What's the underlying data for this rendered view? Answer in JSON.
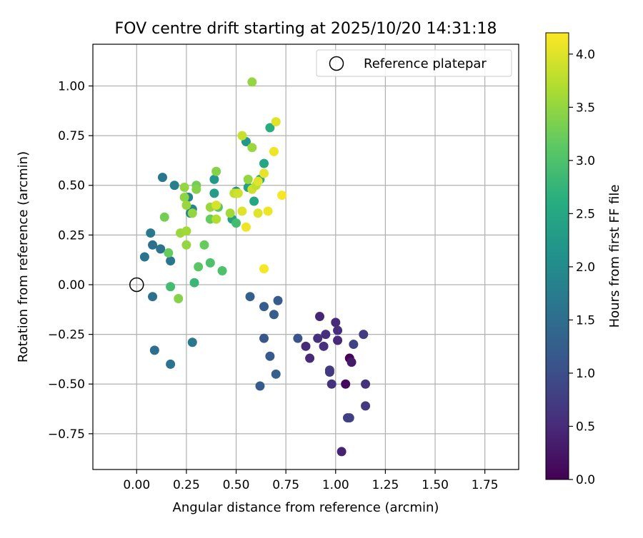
{
  "chart_data": {
    "type": "scatter",
    "title": "FOV centre drift starting at 2025/10/20 14:31:18",
    "xlabel": "Angular distance from reference (arcmin)",
    "ylabel": "Rotation from reference (arcmin)",
    "xlim": [
      -0.22,
      1.92
    ],
    "ylim": [
      -0.93,
      1.21
    ],
    "xticks": [
      0.0,
      0.25,
      0.5,
      0.75,
      1.0,
      1.25,
      1.5,
      1.75
    ],
    "xtick_labels": [
      "0.00",
      "0.25",
      "0.50",
      "0.75",
      "1.00",
      "1.25",
      "1.50",
      "1.75"
    ],
    "yticks": [
      -0.75,
      -0.5,
      -0.25,
      0.0,
      0.25,
      0.5,
      0.75,
      1.0
    ],
    "ytick_labels": [
      "−0.75",
      "−0.50",
      "−0.25",
      "0.00",
      "0.25",
      "0.50",
      "0.75",
      "1.00"
    ],
    "grid": true,
    "legend": {
      "position": "upper-right",
      "entries": [
        "Reference platepar"
      ]
    },
    "reference_point": {
      "x": 0.0,
      "y": 0.0,
      "label": "Reference platepar"
    },
    "colorbar": {
      "label": "Hours from first FF file",
      "range": [
        0.0,
        4.2
      ],
      "ticks": [
        0.0,
        0.5,
        1.0,
        1.5,
        2.0,
        2.5,
        3.0,
        3.5,
        4.0
      ],
      "tick_labels": [
        "0.0",
        "0.5",
        "1.0",
        "1.5",
        "2.0",
        "2.5",
        "3.0",
        "3.5",
        "4.0"
      ],
      "colormap": "viridis"
    },
    "points": [
      {
        "x": 1.07,
        "y": -0.37,
        "h": 0.02
      },
      {
        "x": 1.05,
        "y": -0.5,
        "h": 0.1
      },
      {
        "x": 1.08,
        "y": -0.39,
        "h": 0.3
      },
      {
        "x": 1.03,
        "y": -0.84,
        "h": 0.4
      },
      {
        "x": 0.92,
        "y": -0.16,
        "h": 0.45
      },
      {
        "x": 1.0,
        "y": -0.19,
        "h": 0.5
      },
      {
        "x": 1.01,
        "y": -0.23,
        "h": 0.55
      },
      {
        "x": 1.01,
        "y": -0.28,
        "h": 0.5
      },
      {
        "x": 0.95,
        "y": -0.25,
        "h": 0.55
      },
      {
        "x": 0.91,
        "y": -0.27,
        "h": 0.6
      },
      {
        "x": 0.94,
        "y": -0.31,
        "h": 0.55
      },
      {
        "x": 0.85,
        "y": -0.31,
        "h": 0.5
      },
      {
        "x": 0.87,
        "y": -0.37,
        "h": 0.5
      },
      {
        "x": 0.97,
        "y": -0.43,
        "h": 0.75
      },
      {
        "x": 0.97,
        "y": -0.44,
        "h": 0.7
      },
      {
        "x": 0.98,
        "y": -0.5,
        "h": 0.6
      },
      {
        "x": 1.07,
        "y": -0.67,
        "h": 0.8
      },
      {
        "x": 1.06,
        "y": -0.67,
        "h": 0.8
      },
      {
        "x": 1.15,
        "y": -0.5,
        "h": 0.6
      },
      {
        "x": 1.15,
        "y": -0.61,
        "h": 0.7
      },
      {
        "x": 1.14,
        "y": -0.25,
        "h": 0.75
      },
      {
        "x": 1.09,
        "y": -0.3,
        "h": 0.85
      },
      {
        "x": 0.81,
        "y": -0.27,
        "h": 1.1
      },
      {
        "x": 0.71,
        "y": -0.08,
        "h": 1.2
      },
      {
        "x": 0.69,
        "y": -0.15,
        "h": 1.25
      },
      {
        "x": 0.64,
        "y": -0.27,
        "h": 1.15
      },
      {
        "x": 0.67,
        "y": -0.36,
        "h": 1.2
      },
      {
        "x": 0.7,
        "y": -0.45,
        "h": 1.3
      },
      {
        "x": 0.62,
        "y": -0.51,
        "h": 1.2
      },
      {
        "x": 0.64,
        "y": -0.11,
        "h": 1.25
      },
      {
        "x": 0.57,
        "y": -0.06,
        "h": 1.3
      },
      {
        "x": 0.09,
        "y": -0.33,
        "h": 1.5
      },
      {
        "x": 0.17,
        "y": -0.4,
        "h": 1.6
      },
      {
        "x": 0.08,
        "y": -0.06,
        "h": 1.55
      },
      {
        "x": 0.28,
        "y": -0.29,
        "h": 1.7
      },
      {
        "x": 0.04,
        "y": 0.14,
        "h": 1.6
      },
      {
        "x": 0.08,
        "y": 0.2,
        "h": 1.55
      },
      {
        "x": 0.12,
        "y": 0.18,
        "h": 1.6
      },
      {
        "x": 0.17,
        "y": 0.12,
        "h": 1.65
      },
      {
        "x": 0.07,
        "y": 0.26,
        "h": 1.7
      },
      {
        "x": 0.13,
        "y": 0.54,
        "h": 1.65
      },
      {
        "x": 0.19,
        "y": 0.5,
        "h": 1.8
      },
      {
        "x": 0.26,
        "y": 0.44,
        "h": 1.85
      },
      {
        "x": 0.28,
        "y": 0.38,
        "h": 1.9
      },
      {
        "x": 0.27,
        "y": 0.36,
        "h": 1.95
      },
      {
        "x": 0.39,
        "y": 0.53,
        "h": 2.2
      },
      {
        "x": 0.39,
        "y": 0.46,
        "h": 2.3
      },
      {
        "x": 0.48,
        "y": 0.33,
        "h": 2.4
      },
      {
        "x": 0.5,
        "y": 0.47,
        "h": 2.1
      },
      {
        "x": 0.55,
        "y": 0.72,
        "h": 2.2
      },
      {
        "x": 0.56,
        "y": 0.49,
        "h": 2.4
      },
      {
        "x": 0.59,
        "y": 0.42,
        "h": 2.5
      },
      {
        "x": 0.62,
        "y": 0.53,
        "h": 2.6
      },
      {
        "x": 0.64,
        "y": 0.61,
        "h": 2.5
      },
      {
        "x": 0.67,
        "y": 0.79,
        "h": 2.6
      },
      {
        "x": 0.5,
        "y": 0.31,
        "h": 2.9
      },
      {
        "x": 0.29,
        "y": 0.01,
        "h": 2.8
      },
      {
        "x": 0.17,
        "y": -0.01,
        "h": 2.9
      },
      {
        "x": 0.43,
        "y": 0.07,
        "h": 3.0
      },
      {
        "x": 0.37,
        "y": 0.11,
        "h": 3.0
      },
      {
        "x": 0.41,
        "y": 0.39,
        "h": 3.1
      },
      {
        "x": 0.37,
        "y": 0.33,
        "h": 3.2
      },
      {
        "x": 0.3,
        "y": 0.5,
        "h": 3.3
      },
      {
        "x": 0.3,
        "y": 0.48,
        "h": 3.4
      },
      {
        "x": 0.34,
        "y": 0.2,
        "h": 3.2
      },
      {
        "x": 0.31,
        "y": 0.09,
        "h": 3.1
      },
      {
        "x": 0.14,
        "y": 0.34,
        "h": 3.3
      },
      {
        "x": 0.16,
        "y": 0.16,
        "h": 3.2
      },
      {
        "x": 0.21,
        "y": -0.07,
        "h": 3.4
      },
      {
        "x": 0.24,
        "y": 0.49,
        "h": 3.5
      },
      {
        "x": 0.24,
        "y": 0.44,
        "h": 3.45
      },
      {
        "x": 0.25,
        "y": 0.4,
        "h": 3.55
      },
      {
        "x": 0.28,
        "y": 0.36,
        "h": 3.5
      },
      {
        "x": 0.22,
        "y": 0.26,
        "h": 3.55
      },
      {
        "x": 0.25,
        "y": 0.27,
        "h": 3.6
      },
      {
        "x": 0.25,
        "y": 0.2,
        "h": 3.5
      },
      {
        "x": 0.4,
        "y": 0.57,
        "h": 3.4
      },
      {
        "x": 0.37,
        "y": 0.39,
        "h": 3.55
      },
      {
        "x": 0.4,
        "y": 0.33,
        "h": 3.7
      },
      {
        "x": 0.47,
        "y": 0.36,
        "h": 3.6
      },
      {
        "x": 0.5,
        "y": 0.46,
        "h": 3.6
      },
      {
        "x": 0.56,
        "y": 0.53,
        "h": 3.5
      },
      {
        "x": 0.58,
        "y": 0.69,
        "h": 3.55
      },
      {
        "x": 0.58,
        "y": 1.02,
        "h": 3.5
      },
      {
        "x": 0.53,
        "y": 0.75,
        "h": 3.85
      },
      {
        "x": 0.49,
        "y": 0.46,
        "h": 3.8
      },
      {
        "x": 0.51,
        "y": 0.46,
        "h": 3.9
      },
      {
        "x": 0.4,
        "y": 0.4,
        "h": 3.95
      },
      {
        "x": 0.53,
        "y": 0.37,
        "h": 4.0
      },
      {
        "x": 0.58,
        "y": 0.48,
        "h": 3.9
      },
      {
        "x": 0.6,
        "y": 0.5,
        "h": 3.8
      },
      {
        "x": 0.61,
        "y": 0.52,
        "h": 4.0
      },
      {
        "x": 0.61,
        "y": 0.36,
        "h": 4.0
      },
      {
        "x": 0.55,
        "y": 0.29,
        "h": 4.1
      },
      {
        "x": 0.64,
        "y": 0.56,
        "h": 4.05
      },
      {
        "x": 0.66,
        "y": 0.37,
        "h": 4.1
      },
      {
        "x": 0.69,
        "y": 0.67,
        "h": 4.1
      },
      {
        "x": 0.7,
        "y": 0.82,
        "h": 4.0
      },
      {
        "x": 0.73,
        "y": 0.45,
        "h": 4.15
      },
      {
        "x": 0.64,
        "y": 0.08,
        "h": 4.15
      }
    ]
  }
}
